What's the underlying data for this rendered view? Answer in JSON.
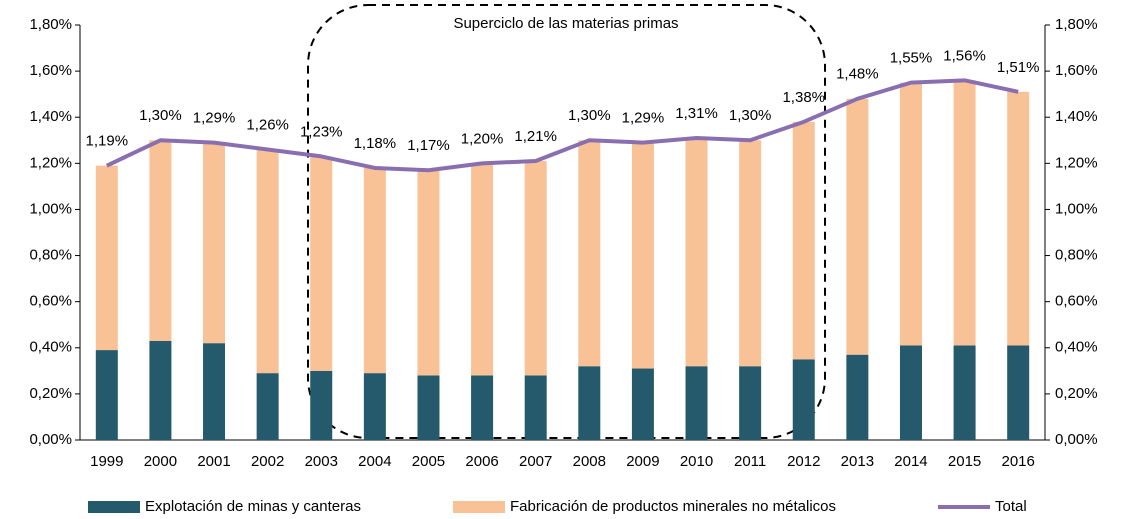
{
  "chart_data": {
    "type": "bar",
    "stacked": true,
    "annotation": "Superciclo de las materias primas",
    "categories": [
      "1999",
      "2000",
      "2001",
      "2002",
      "2003",
      "2004",
      "2005",
      "2006",
      "2007",
      "2008",
      "2009",
      "2010",
      "2011",
      "2012",
      "2013",
      "2014",
      "2015",
      "2016"
    ],
    "series": [
      {
        "name": "Explotación de minas y canteras",
        "type": "bar",
        "color": "#245a6b",
        "values": [
          0.39,
          0.43,
          0.42,
          0.29,
          0.3,
          0.29,
          0.28,
          0.28,
          0.28,
          0.32,
          0.31,
          0.32,
          0.32,
          0.35,
          0.37,
          0.41,
          0.41,
          0.41
        ]
      },
      {
        "name": "Fabricación de productos minerales no métalicos",
        "type": "bar",
        "color": "#f8c196",
        "values": [
          0.8,
          0.87,
          0.87,
          0.97,
          0.93,
          0.89,
          0.89,
          0.92,
          0.93,
          0.98,
          0.98,
          0.99,
          0.98,
          1.03,
          1.11,
          1.14,
          1.15,
          1.1
        ]
      },
      {
        "name": "Total",
        "type": "line",
        "color": "#8a6fb0",
        "values": [
          1.19,
          1.3,
          1.29,
          1.26,
          1.23,
          1.18,
          1.17,
          1.2,
          1.21,
          1.3,
          1.29,
          1.31,
          1.3,
          1.38,
          1.48,
          1.55,
          1.56,
          1.51
        ],
        "value_labels": [
          "1,19%",
          "1,30%",
          "1,29%",
          "1,26%",
          "1,23%",
          "1,18%",
          "1,17%",
          "1,20%",
          "1,21%",
          "1,30%",
          "1,29%",
          "1,31%",
          "1,30%",
          "1,38%",
          "1,48%",
          "1,55%",
          "1,56%",
          "1,51%"
        ]
      }
    ],
    "ylim": [
      0,
      1.8
    ],
    "yticks": [
      {
        "value": 0,
        "label": "0,00%"
      },
      {
        "value": 0.2,
        "label": "0,20%"
      },
      {
        "value": 0.4,
        "label": "0,40%"
      },
      {
        "value": 0.6,
        "label": "0,60%"
      },
      {
        "value": 0.8,
        "label": "0,80%"
      },
      {
        "value": 1.0,
        "label": "1,00%"
      },
      {
        "value": 1.2,
        "label": "1,20%"
      },
      {
        "value": 1.4,
        "label": "1,40%"
      },
      {
        "value": 1.6,
        "label": "1,60%"
      },
      {
        "value": 1.8,
        "label": "1,80%"
      }
    ],
    "y2lim": [
      0,
      1.8
    ],
    "y2ticks": [
      {
        "value": 0,
        "label": "0,00%"
      },
      {
        "value": 0.2,
        "label": "0,20%"
      },
      {
        "value": 0.4,
        "label": "0,40%"
      },
      {
        "value": 0.6,
        "label": "0,60%"
      },
      {
        "value": 0.8,
        "label": "0,80%"
      },
      {
        "value": 1.0,
        "label": "1,00%"
      },
      {
        "value": 1.2,
        "label": "1,20%"
      },
      {
        "value": 1.4,
        "label": "1,40%"
      },
      {
        "value": 1.6,
        "label": "1,60%"
      },
      {
        "value": 1.8,
        "label": "1,80%"
      }
    ],
    "legend": "bottom"
  }
}
